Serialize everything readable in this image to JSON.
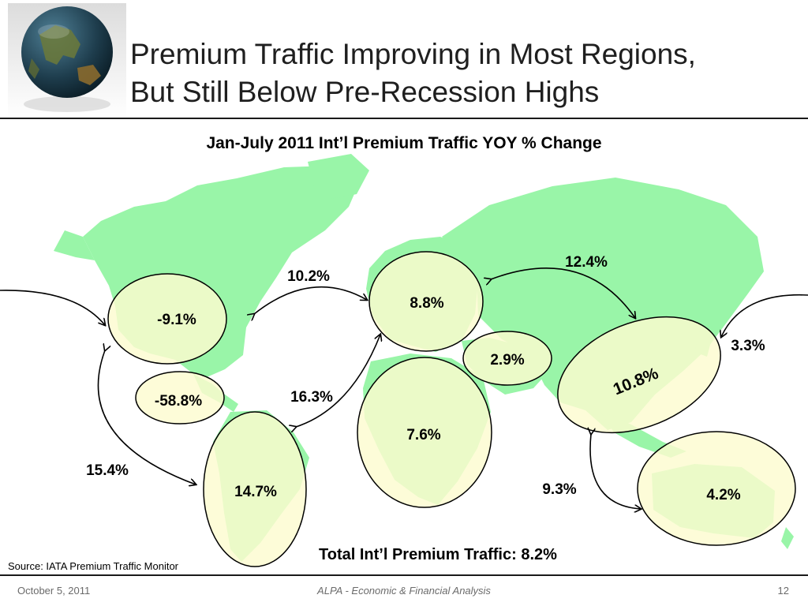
{
  "slide": {
    "title_line1": "Premium Traffic Improving in Most Regions,",
    "title_line2": "But Still Below Pre-Recession Highs",
    "logo": "globe-icon",
    "source": "Source:  IATA Premium Traffic Monitor",
    "total": "Total Int’l Premium Traffic: 8.2%",
    "footer": {
      "date": "October 5, 2011",
      "center": "ALPA - Economic & Financial Analysis",
      "page": "12"
    },
    "colors": {
      "land": "#99f5a8",
      "region_fill": "#fcfbd0",
      "outline": "#000000"
    }
  },
  "chart_data": {
    "type": "map",
    "title": "Jan-July 2011 Int’l Premium Traffic YOY % Change",
    "regions": [
      {
        "label": "-9.1%"
      },
      {
        "label": "-58.8%"
      },
      {
        "label": "14.7%"
      },
      {
        "label": "8.8%"
      },
      {
        "label": "2.9%"
      },
      {
        "label": "7.6%"
      },
      {
        "label": "10.8%"
      },
      {
        "label": "4.2%"
      }
    ],
    "routes": [
      {
        "label": "10.2%"
      },
      {
        "label": "16.3%"
      },
      {
        "label": "15.4%"
      },
      {
        "label": "12.4%"
      },
      {
        "label": "3.3%"
      },
      {
        "label": "9.3%"
      }
    ]
  }
}
